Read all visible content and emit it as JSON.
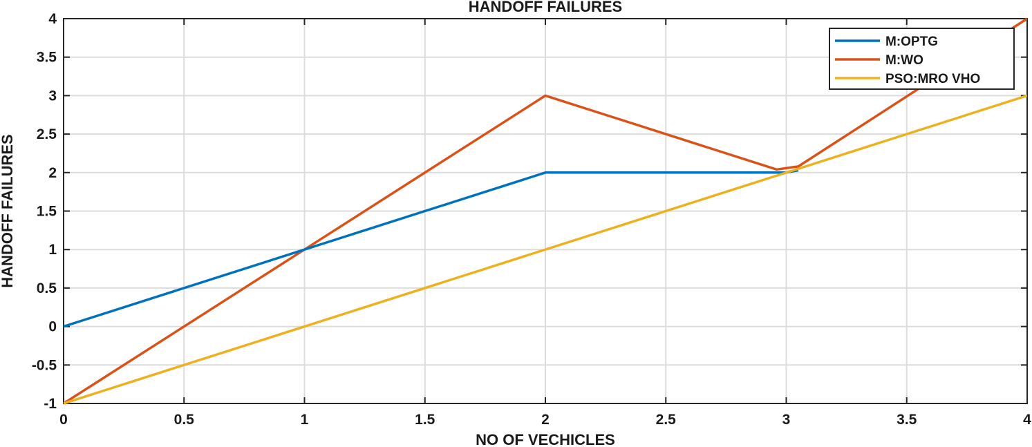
{
  "chart_data": {
    "type": "line",
    "title": "HANDOFF FAILURES",
    "xlabel": "NO OF VECHICLES",
    "ylabel": "HANDOFF FAILURES",
    "xlim": [
      0,
      4
    ],
    "ylim": [
      -1,
      4
    ],
    "xticks": [
      0,
      0.5,
      1,
      1.5,
      2,
      2.5,
      3,
      3.5,
      4
    ],
    "xtick_labels": [
      "0",
      "0.5",
      "1",
      "1.5",
      "2",
      "2.5",
      "3",
      "3.5",
      "4"
    ],
    "yticks": [
      -1,
      -0.5,
      0,
      0.5,
      1,
      1.5,
      2,
      2.5,
      3,
      3.5,
      4
    ],
    "ytick_labels": [
      "-1",
      "-0.5",
      "0",
      "0.5",
      "1",
      "1.5",
      "2",
      "2.5",
      "3",
      "3.5",
      "4"
    ],
    "grid": true,
    "legend_position": "top-right",
    "series": [
      {
        "name": "M:OPTG",
        "color": "#0072bd",
        "x": [
          0,
          1,
          2,
          3,
          3.05
        ],
        "y": [
          0,
          1,
          2,
          2,
          2.03
        ]
      },
      {
        "name": "M:WO",
        "color": "#d95319",
        "x": [
          0,
          1,
          2,
          2.96,
          3.05,
          4
        ],
        "y": [
          -1,
          1,
          3,
          2.04,
          2.08,
          4
        ]
      },
      {
        "name": "PSO:MRO VHO",
        "color": "#edb120",
        "x": [
          0,
          4
        ],
        "y": [
          -1,
          3
        ]
      }
    ]
  }
}
